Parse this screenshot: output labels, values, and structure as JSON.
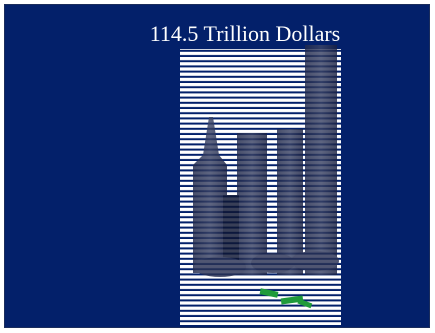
{
  "slide": {
    "title": "114.5 Trillion Dollars",
    "image": {
      "subject": "money-stack-towers-illustration",
      "colors": {
        "background": "#03206a",
        "stripes": "#ffffff",
        "tower_shadow": "#1a2347",
        "money_green": "#1f9a3a"
      }
    }
  }
}
